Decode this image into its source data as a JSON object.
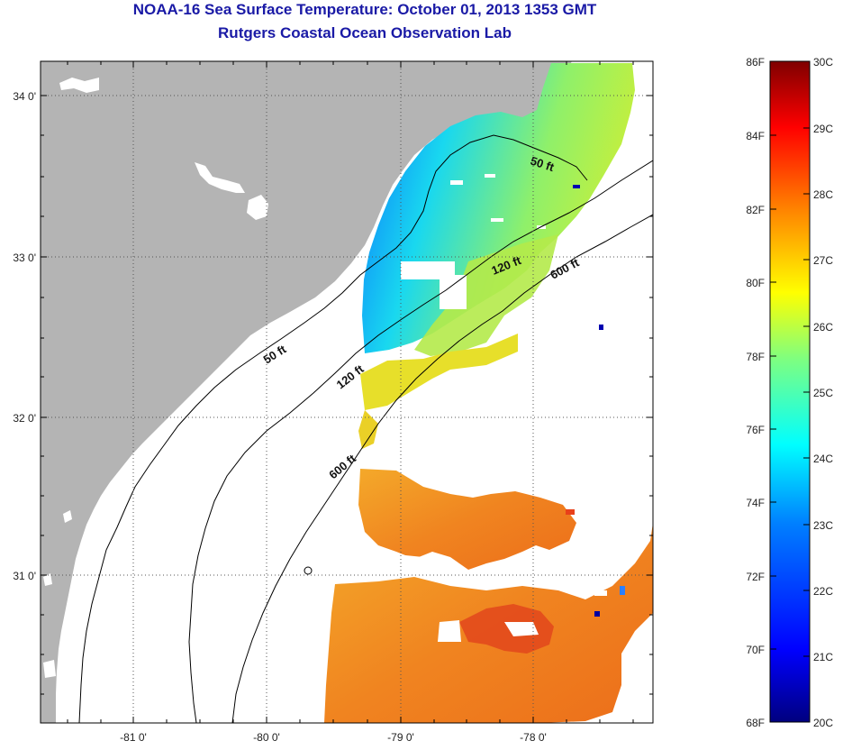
{
  "title": "NOAA-16 Sea Surface Temperature:  October 01, 2013 1353 GMT",
  "subtitle": "Rutgers Coastal Ocean Observation Lab",
  "lat_labels": [
    "34 0'",
    "33 0'",
    "32 0'",
    "31 0'"
  ],
  "lon_labels": [
    "-81 0'",
    "-80 0'",
    "-79 0'",
    "-78 0'"
  ],
  "contour_labels": {
    "c50_north": "50 ft",
    "c50_south": "50 ft",
    "c120_north": "120 ft",
    "c120_south": "120 ft",
    "c600_north": "600 ft",
    "c600_south": "600 ft"
  },
  "colorbar": {
    "fahrenheit": [
      "86F",
      "84F",
      "82F",
      "80F",
      "78F",
      "76F",
      "74F",
      "72F",
      "70F",
      "68F"
    ],
    "celsius": [
      "30C",
      "29C",
      "28C",
      "27C",
      "26C",
      "25C",
      "24C",
      "23C",
      "22C",
      "21C",
      "20C"
    ],
    "colors": [
      "#00007f",
      "#0000ff",
      "#007fff",
      "#00ffff",
      "#7fff7f",
      "#ffff00",
      "#ff7f00",
      "#ff0000",
      "#7f0000"
    ]
  },
  "colors": {
    "land": "#b4b4b4",
    "title": "#1a1aa6"
  }
}
